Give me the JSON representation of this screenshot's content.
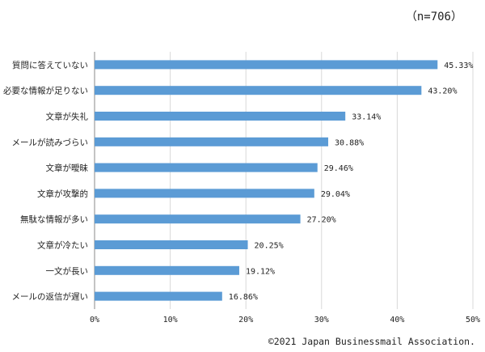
{
  "header": {
    "n_label": "（n=706）"
  },
  "footer": {
    "copyright": "©2021 Japan Businessmail Association."
  },
  "colors": {
    "bar": "#5b9bd5",
    "grid": "#d9d9d9",
    "axis": "#888888"
  },
  "chart_data": {
    "type": "bar",
    "orientation": "horizontal",
    "categories": [
      "質問に答えていない",
      "必要な情報が足りない",
      "文章が失礼",
      "メールが読みづらい",
      "文章が曖昧",
      "文章が攻撃的",
      "無駄な情報が多い",
      "文章が冷たい",
      "一文が長い",
      "メールの返信が遅い"
    ],
    "values": [
      45.33,
      43.2,
      33.14,
      30.88,
      29.46,
      29.04,
      27.2,
      20.25,
      19.12,
      16.86
    ],
    "value_labels": [
      "45.33%",
      "43.20%",
      "33.14%",
      "30.88%",
      "29.46%",
      "29.04%",
      "27.20%",
      "20.25%",
      "19.12%",
      "16.86%"
    ],
    "xlim": [
      0,
      50
    ],
    "x_ticks": [
      0,
      10,
      20,
      30,
      40,
      50
    ],
    "x_tick_labels": [
      "0%",
      "10%",
      "20%",
      "30%",
      "40%",
      "50%"
    ],
    "grid": true,
    "title": "",
    "xlabel": "",
    "ylabel": ""
  }
}
